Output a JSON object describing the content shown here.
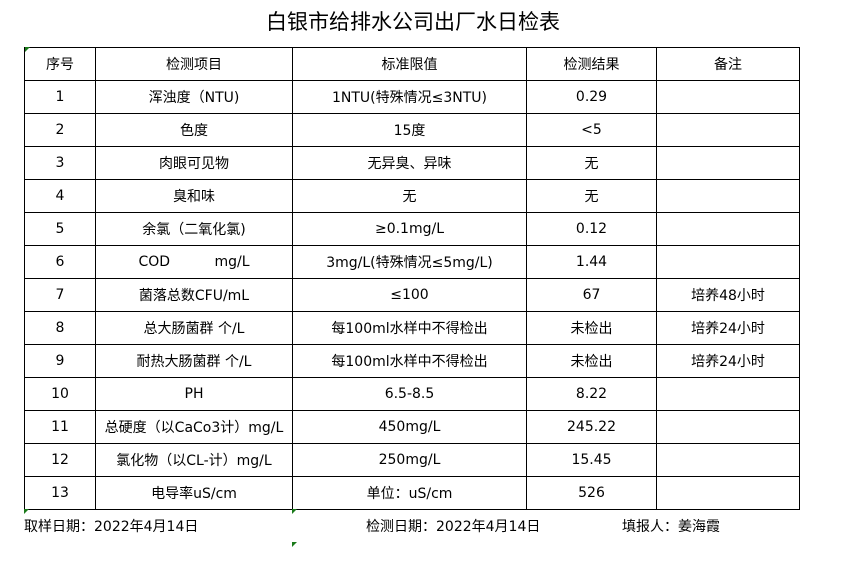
{
  "title": "白银市给排水公司出厂水日检表",
  "headers": [
    "序号",
    "检测项目",
    "标准限值",
    "检测结果",
    "备注"
  ],
  "rows": [
    [
      "1",
      "浑浊度（NTU)",
      "1NTU(特殊情况≤3NTU)",
      "0.29",
      ""
    ],
    [
      "2",
      "色度",
      "15度",
      "<5",
      ""
    ],
    [
      "3",
      "肉眼可见物",
      "无异臭、异味",
      "无",
      ""
    ],
    [
      "4",
      "臭和味",
      "无",
      "无",
      ""
    ],
    [
      "5",
      "余氯（二氧化氯)",
      "≥0.1mg/L",
      "0.12",
      ""
    ],
    [
      "6",
      "COD          mg/L",
      "3mg/L(特殊情况≤5mg/L)",
      "1.44",
      ""
    ],
    [
      "7",
      "菌落总数CFU/mL",
      "≤100",
      "67",
      "培养48小时"
    ],
    [
      "8",
      "总大肠菌群 个/L",
      "每100ml水样中不得检出",
      "未检出",
      "培养24小时"
    ],
    [
      "9",
      "耐热大肠菌群 个/L",
      "每100ml水样中不得检出",
      "未检出",
      "培养24小时"
    ],
    [
      "10",
      "PH",
      "6.5-8.5",
      "8.22",
      ""
    ],
    [
      "11",
      "总硬度（以CaCo3计）mg/L",
      "450mg/L",
      "245.22",
      ""
    ],
    [
      "12",
      "氯化物（以CL-计）mg/L",
      "250mg/L",
      "15.45",
      ""
    ],
    [
      "13",
      "电导率uS/cm",
      "单位：uS/cm",
      "526",
      ""
    ]
  ],
  "footer": {
    "sample_date": "取样日期：2022年4月14日",
    "test_date": "检测日期：2022年4月14日",
    "reporter": "填报人：姜海霞"
  }
}
